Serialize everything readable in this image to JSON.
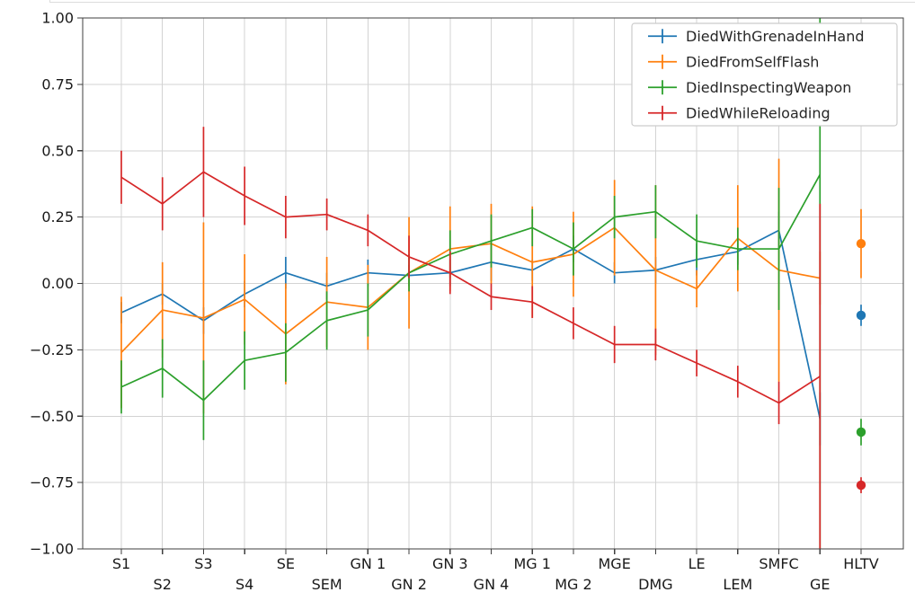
{
  "chart_data": {
    "type": "line",
    "title": "",
    "xlabel": "",
    "ylabel": "",
    "grid": true,
    "ylim": [
      -1.0,
      1.0
    ],
    "legend_position": "upper right",
    "y_axis": {
      "tick_labels": [
        "1.00",
        "0.75",
        "0.50",
        "0.25",
        "0.00",
        "−0.25",
        "−0.50",
        "−0.75",
        "−1.00"
      ],
      "tick_values": [
        1.0,
        0.75,
        0.5,
        0.25,
        0.0,
        -0.25,
        -0.5,
        -0.75,
        -1.0
      ]
    },
    "categories": [
      "S1",
      "S2",
      "S3",
      "S4",
      "SE",
      "SEM",
      "GN 1",
      "GN 2",
      "GN 3",
      "GN 4",
      "MG 1",
      "MG 2",
      "MGE",
      "DMG",
      "LE",
      "LEM",
      "SMFC",
      "GE",
      "HLTV"
    ],
    "last_category_detached_marker": true,
    "series": [
      {
        "name": "DiedWithGrenadeInHand",
        "color": "#1f77b4",
        "values": [
          -0.11,
          -0.04,
          -0.14,
          -0.04,
          0.04,
          -0.01,
          0.04,
          0.03,
          0.04,
          0.08,
          0.05,
          0.13,
          0.04,
          0.05,
          0.09,
          0.12,
          0.2,
          -0.51,
          -0.12
        ],
        "errors": [
          0.04,
          0.04,
          0.05,
          0.05,
          0.06,
          0.05,
          0.05,
          0.04,
          0.05,
          0.07,
          0.04,
          0.05,
          0.04,
          0.05,
          0.06,
          0.05,
          0.07,
          0.1,
          0.04
        ]
      },
      {
        "name": "DiedFromSelfFlash",
        "color": "#ff7f0e",
        "values": [
          -0.26,
          -0.1,
          -0.13,
          -0.06,
          -0.19,
          -0.07,
          -0.09,
          0.04,
          0.13,
          0.15,
          0.08,
          0.11,
          0.21,
          0.05,
          -0.02,
          0.17,
          0.05,
          0.02,
          0.15
        ],
        "errors": [
          0.21,
          0.18,
          0.36,
          0.17,
          0.19,
          0.17,
          0.16,
          0.21,
          0.16,
          0.15,
          0.21,
          0.16,
          0.18,
          0.32,
          0.07,
          0.2,
          0.42,
          0.1,
          0.13
        ]
      },
      {
        "name": "DiedInspectingWeapon",
        "color": "#2ca02c",
        "values": [
          -0.39,
          -0.32,
          -0.44,
          -0.29,
          -0.26,
          -0.14,
          -0.1,
          0.04,
          0.11,
          0.16,
          0.21,
          0.13,
          0.25,
          0.27,
          0.16,
          0.13,
          0.13,
          0.41,
          -0.56
        ],
        "errors": [
          0.1,
          0.11,
          0.15,
          0.11,
          0.11,
          0.11,
          0.1,
          0.07,
          0.09,
          0.1,
          0.07,
          0.1,
          0.08,
          0.1,
          0.1,
          0.08,
          0.23,
          1.5,
          0.05
        ]
      },
      {
        "name": "DiedWhileReloading",
        "color": "#d62728",
        "values": [
          0.4,
          0.3,
          0.42,
          0.33,
          0.25,
          0.26,
          0.2,
          0.1,
          0.04,
          -0.05,
          -0.07,
          -0.15,
          -0.23,
          -0.23,
          -0.3,
          -0.37,
          -0.45,
          -0.35,
          -0.76
        ],
        "errors": [
          0.1,
          0.1,
          0.17,
          0.11,
          0.08,
          0.06,
          0.06,
          0.08,
          0.08,
          0.05,
          0.06,
          0.06,
          0.07,
          0.06,
          0.05,
          0.06,
          0.08,
          0.65,
          0.03
        ]
      }
    ],
    "style": {
      "grid_color": "#d3d3d3",
      "spine_color": "#3f3f3f",
      "tick_color": "#3f3f3f",
      "text_color": "#1a1a1a",
      "legend_border_color": "#cccccc",
      "legend_background": "#ffffff",
      "plot_background": "#ffffff"
    }
  }
}
